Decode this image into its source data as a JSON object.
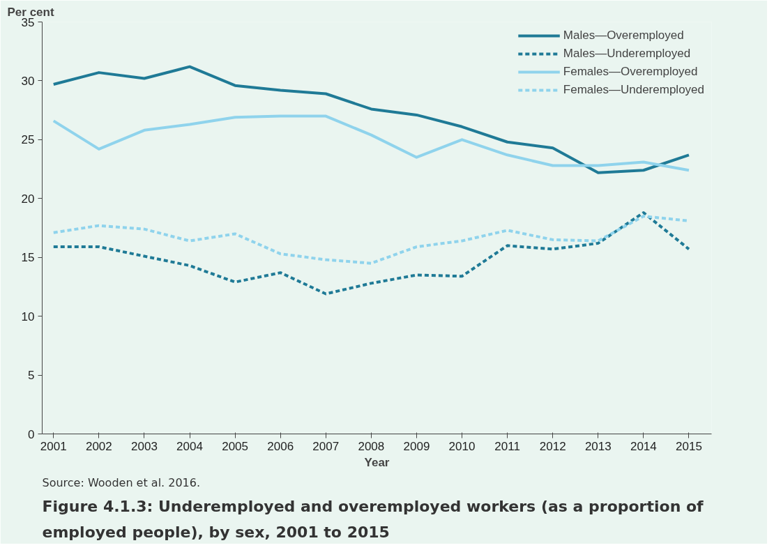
{
  "chart_data": {
    "type": "line",
    "title": "Figure 4.1.3: Underemployed and overemployed workers (as a proportion of employed people), by sex, 2001 to 2015",
    "xlabel": "Year",
    "ylabel": "Per cent",
    "annotations": [
      "Source: Wooden et al. 2016."
    ],
    "categories": [
      "2001",
      "2002",
      "2003",
      "2004",
      "2005",
      "2006",
      "2007",
      "2008",
      "2009",
      "2010",
      "2011",
      "2012",
      "2013",
      "2014",
      "2015"
    ],
    "ylim": [
      0,
      35
    ],
    "yticks": [
      0,
      5,
      10,
      15,
      20,
      25,
      30,
      35
    ],
    "grid": false,
    "legend": "top right",
    "series": [
      {
        "name": "Males—Overemployed",
        "color": "#1f7a96",
        "line_style": "solid",
        "values": [
          29.7,
          30.7,
          30.2,
          31.2,
          29.6,
          29.2,
          28.9,
          27.6,
          27.1,
          26.1,
          24.8,
          24.3,
          22.2,
          22.4,
          23.7
        ]
      },
      {
        "name": "Males—Underemployed",
        "color": "#1f7a96",
        "line_style": "dashed",
        "values": [
          15.9,
          15.9,
          15.1,
          14.3,
          12.9,
          13.7,
          11.9,
          12.8,
          13.5,
          13.4,
          16.0,
          15.7,
          16.2,
          18.8,
          15.7
        ]
      },
      {
        "name": "Females—Overemployed",
        "color": "#8fd3ec",
        "line_style": "solid",
        "values": [
          26.6,
          24.2,
          25.8,
          26.3,
          26.9,
          27.0,
          27.0,
          25.4,
          23.5,
          25.0,
          23.7,
          22.8,
          22.8,
          23.1,
          22.4
        ]
      },
      {
        "name": "Females—Underemployed",
        "color": "#8fd3ec",
        "line_style": "dashed",
        "values": [
          17.1,
          17.7,
          17.4,
          16.4,
          17.0,
          15.3,
          14.8,
          14.5,
          15.9,
          16.4,
          17.3,
          16.5,
          16.4,
          18.5,
          18.1
        ]
      }
    ]
  }
}
